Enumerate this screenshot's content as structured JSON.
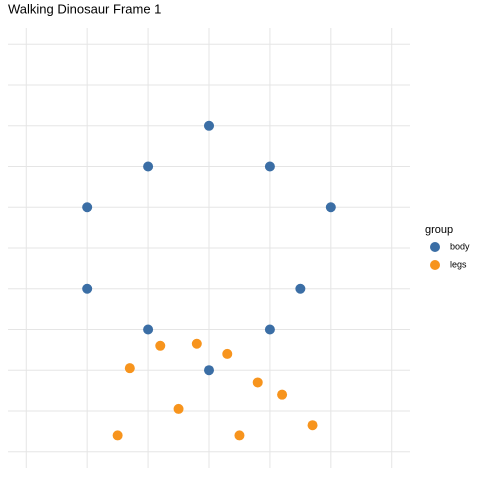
{
  "chart_data": {
    "type": "scatter",
    "title": "Walking Dinosaur Frame 1",
    "legend_title": "group",
    "legend_position": "right",
    "grid": true,
    "xlim": [
      -3.3,
      3.3
    ],
    "xticks": [
      -3,
      -2,
      -1,
      0,
      1,
      2,
      3
    ],
    "ylim": [
      -0.4,
      10.4
    ],
    "yticks": [
      0,
      1,
      2,
      3,
      4,
      5,
      6,
      7,
      8,
      9,
      10
    ],
    "series": [
      {
        "name": "body",
        "color": "#3b6ea5",
        "x": [
          0,
          -1,
          1,
          -2,
          2,
          -2,
          1.5,
          -1,
          1,
          0
        ],
        "values": [
          8,
          7,
          7,
          6,
          6,
          4,
          4,
          3,
          3,
          2
        ]
      },
      {
        "name": "legs",
        "color": "#f7941d",
        "x": [
          -0.8,
          -0.2,
          0.3,
          -1.3,
          0.8,
          1.2,
          -0.5,
          1.7,
          -1.5,
          0.5
        ],
        "values": [
          2.6,
          2.65,
          2.4,
          2.05,
          1.7,
          1.4,
          1.05,
          0.65,
          0.4,
          0.4
        ]
      }
    ]
  }
}
